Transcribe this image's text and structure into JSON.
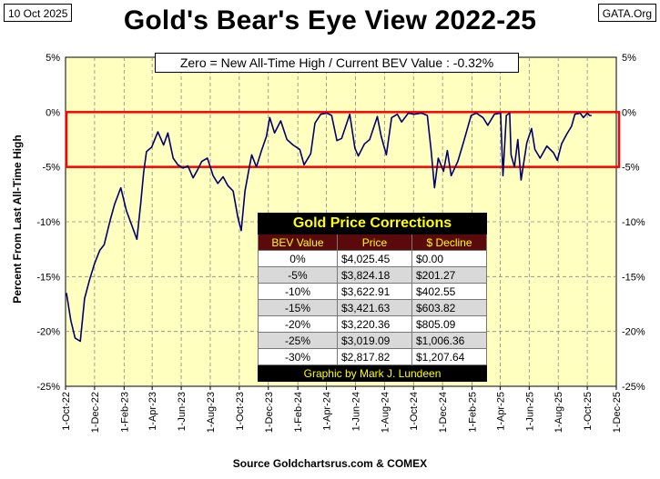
{
  "header": {
    "date": "10 Oct 2025",
    "site": "GATA.Org"
  },
  "source_text": "Source Goldchartsrus.com & COMEX",
  "colors": {
    "plot_bg": "#ffffc0",
    "line": "#00006e",
    "band": "#ff0000"
  },
  "chart_data": {
    "type": "line",
    "title": "Gold's Bear's Eye View 2022-25",
    "subtitle": "Zero = New All-Time High / Current  BEV Value : -0.32%",
    "ylabel": "Percent  From Last  All-Time High",
    "xlabel": "",
    "ylim": [
      -25,
      5
    ],
    "yticks": [
      5,
      0,
      -5,
      -10,
      -15,
      -20,
      -25
    ],
    "ytick_labels": [
      "5%",
      "0%",
      "-5%",
      "-10%",
      "-15%",
      "-20%",
      "-25%"
    ],
    "xlim": [
      "2022-10-01",
      "2025-12-01"
    ],
    "xtick_labels": [
      "1-Oct-22",
      "1-Dec-22",
      "1-Feb-23",
      "1-Apr-23",
      "1-Jun-23",
      "1-Aug-23",
      "1-Oct-23",
      "1-Dec-23",
      "1-Feb-24",
      "1-Apr-24",
      "1-Jun-24",
      "1-Aug-24",
      "1-Oct-24",
      "1-Dec-24",
      "1-Feb-25",
      "1-Apr-25",
      "1-Jun-25",
      "1-Aug-25",
      "1-Oct-25",
      "1-Dec-25"
    ],
    "grid": true,
    "band": {
      "from": 0,
      "to": -5
    },
    "series": [
      {
        "x": [
          "2022-10-03",
          "2022-10-12",
          "2022-10-21",
          "2022-11-01",
          "2022-11-10",
          "2022-11-21",
          "2022-12-01",
          "2022-12-12",
          "2022-12-21",
          "2023-01-03",
          "2023-01-12",
          "2023-01-25",
          "2023-02-06",
          "2023-02-16",
          "2023-02-28",
          "2023-03-08",
          "2023-03-14",
          "2023-03-20",
          "2023-03-31",
          "2023-04-13",
          "2023-04-25",
          "2023-05-04",
          "2023-05-15",
          "2023-05-25",
          "2023-06-05",
          "2023-06-15",
          "2023-06-26",
          "2023-07-05",
          "2023-07-14",
          "2023-07-26",
          "2023-08-07",
          "2023-08-17",
          "2023-08-28",
          "2023-09-07",
          "2023-09-18",
          "2023-09-28",
          "2023-10-05",
          "2023-10-13",
          "2023-10-23",
          "2023-10-27",
          "2023-11-06",
          "2023-11-16",
          "2023-11-27",
          "2023-12-04",
          "2023-12-14",
          "2023-12-27",
          "2024-01-09",
          "2024-01-22",
          "2024-02-05",
          "2024-02-14",
          "2024-02-28",
          "2024-03-08",
          "2024-03-20",
          "2024-04-02",
          "2024-04-12",
          "2024-04-23",
          "2024-05-03",
          "2024-05-20",
          "2024-05-31",
          "2024-06-07",
          "2024-06-20",
          "2024-07-01",
          "2024-07-17",
          "2024-07-25",
          "2024-08-05",
          "2024-08-16",
          "2024-08-28",
          "2024-09-06",
          "2024-09-20",
          "2024-10-02",
          "2024-10-18",
          "2024-10-30",
          "2024-11-07",
          "2024-11-14",
          "2024-11-22",
          "2024-12-03",
          "2024-12-11",
          "2024-12-19",
          "2025-01-02",
          "2025-01-15",
          "2025-01-30",
          "2025-02-10",
          "2025-02-24",
          "2025-03-06",
          "2025-03-20",
          "2025-04-02",
          "2025-04-07",
          "2025-04-14",
          "2025-04-21",
          "2025-04-24",
          "2025-05-01",
          "2025-05-08",
          "2025-05-15",
          "2025-05-27",
          "2025-06-06",
          "2025-06-13",
          "2025-06-24",
          "2025-07-08",
          "2025-07-22",
          "2025-07-30",
          "2025-08-08",
          "2025-08-19",
          "2025-08-29",
          "2025-09-05",
          "2025-09-16",
          "2025-09-23",
          "2025-10-01",
          "2025-10-06",
          "2025-10-10"
        ],
        "values": [
          -16.5,
          -19.0,
          -20.6,
          -20.9,
          -17.0,
          -15.2,
          -13.8,
          -12.6,
          -12.1,
          -9.8,
          -8.4,
          -6.9,
          -9.0,
          -10.2,
          -11.6,
          -8.3,
          -5.5,
          -3.6,
          -3.2,
          -1.8,
          -3.0,
          -1.9,
          -4.2,
          -4.8,
          -5.1,
          -4.9,
          -6.0,
          -5.3,
          -4.5,
          -4.2,
          -5.8,
          -6.5,
          -5.9,
          -6.7,
          -7.2,
          -9.6,
          -10.8,
          -7.2,
          -4.8,
          -3.9,
          -5.0,
          -3.6,
          -2.2,
          -0.5,
          -1.9,
          -0.8,
          -2.5,
          -3.0,
          -3.4,
          -4.8,
          -3.8,
          -1.0,
          -0.2,
          -0.1,
          -0.3,
          -2.6,
          -2.4,
          -0.2,
          -3.3,
          -4.0,
          -2.9,
          -2.5,
          -0.4,
          -2.2,
          -3.9,
          -0.5,
          -0.2,
          -0.9,
          -0.1,
          -0.2,
          -0.1,
          -0.3,
          -3.5,
          -6.9,
          -4.2,
          -5.4,
          -3.5,
          -5.8,
          -4.5,
          -2.6,
          -0.3,
          -0.1,
          -0.5,
          -1.2,
          -0.2,
          -0.1,
          -5.8,
          -0.3,
          -0.1,
          -3.9,
          -5.0,
          -2.5,
          -6.2,
          -2.8,
          -1.5,
          -3.4,
          -4.2,
          -3.1,
          -3.7,
          -4.4,
          -2.9,
          -2.0,
          -1.3,
          -0.2,
          -0.1,
          -0.5,
          -0.1,
          -0.3,
          -0.32
        ]
      }
    ]
  },
  "table": {
    "title": "Gold Price Corrections",
    "headers": [
      "BEV Value",
      "Price",
      "$ Decline"
    ],
    "rows": [
      [
        "0%",
        "$4,025.45",
        "$0.00"
      ],
      [
        "-5%",
        "$3,824.18",
        "$201.27"
      ],
      [
        "-10%",
        "$3,622.91",
        "$402.55"
      ],
      [
        "-15%",
        "$3,421.63",
        "$603.82"
      ],
      [
        "-20%",
        "$3,220.36",
        "$805.09"
      ],
      [
        "-25%",
        "$3,019.09",
        "$1,006.36"
      ],
      [
        "-30%",
        "$2,817.82",
        "$1,207.64"
      ]
    ],
    "footer": "Graphic by Mark J. Lundeen"
  }
}
